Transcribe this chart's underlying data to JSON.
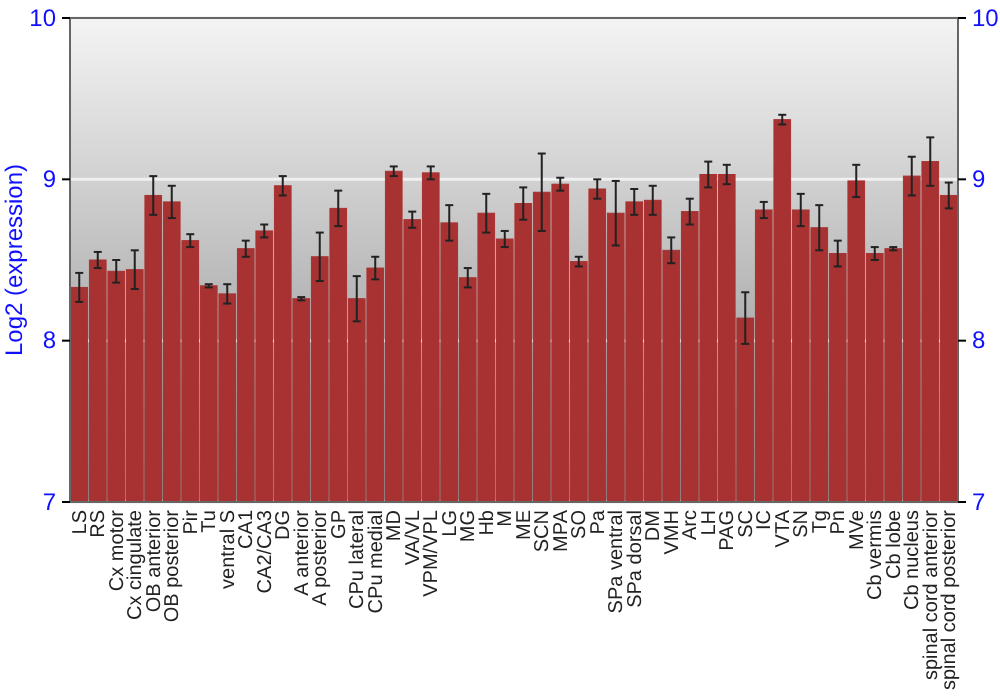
{
  "chart_data": {
    "type": "bar",
    "ylabel": "Log2 (expression)",
    "categories": [
      "LS",
      "RS",
      "Cx motor",
      "Cx cingulate",
      "OB anterior",
      "OB posterior",
      "Pir",
      "Tu",
      "ventral S",
      "CA1",
      "CA2/CA3",
      "DG",
      "A anterior",
      "A posterior",
      "GP",
      "CPu lateral",
      "CPu medial",
      "MD",
      "VA/VL",
      "VPM/VPL",
      "LG",
      "MG",
      "Hb",
      "M",
      "ME",
      "SCN",
      "MPA",
      "SO",
      "Pa",
      "SPa ventral",
      "SPa dorsal",
      "DM",
      "VMH",
      "Arc",
      "LH",
      "PAG",
      "SC",
      "IC",
      "VTA",
      "SN",
      "Tg",
      "Pn",
      "MVe",
      "Cb vermis",
      "Cb lobe",
      "Cb nucleus",
      "spinal cord anterior",
      "spinal cord posterior"
    ],
    "values": [
      8.33,
      8.5,
      8.43,
      8.44,
      8.9,
      8.86,
      8.62,
      8.34,
      8.29,
      8.57,
      8.68,
      8.96,
      8.26,
      8.52,
      8.82,
      8.26,
      8.45,
      9.05,
      8.75,
      9.04,
      8.73,
      8.39,
      8.79,
      8.63,
      8.85,
      8.92,
      8.97,
      8.49,
      8.94,
      8.79,
      8.86,
      8.87,
      8.56,
      8.8,
      9.03,
      9.03,
      8.14,
      8.81,
      9.37,
      8.81,
      8.7,
      8.54,
      8.99,
      8.54,
      8.57,
      9.02,
      9.11,
      8.9
    ],
    "errors": [
      0.09,
      0.05,
      0.07,
      0.12,
      0.12,
      0.1,
      0.04,
      0.01,
      0.06,
      0.05,
      0.04,
      0.06,
      0.01,
      0.15,
      0.11,
      0.14,
      0.07,
      0.03,
      0.05,
      0.04,
      0.11,
      0.06,
      0.12,
      0.05,
      0.1,
      0.24,
      0.04,
      0.03,
      0.06,
      0.2,
      0.08,
      0.09,
      0.08,
      0.08,
      0.08,
      0.06,
      0.16,
      0.05,
      0.03,
      0.1,
      0.14,
      0.08,
      0.1,
      0.04,
      0.01,
      0.12,
      0.15,
      0.08
    ],
    "color": "#a83232",
    "ylim": [
      7,
      10
    ],
    "yticks": [
      7,
      8,
      9,
      10
    ],
    "y2lim": [
      7,
      10
    ],
    "y2ticks": [
      7,
      8,
      9,
      10
    ],
    "grid": "y"
  }
}
